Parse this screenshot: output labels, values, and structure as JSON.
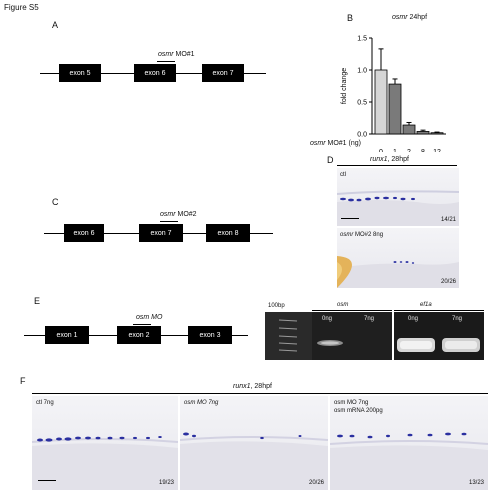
{
  "figure_title": "Figure S5",
  "panels": {
    "A": {
      "letter": "A",
      "mo_gene": "osmr",
      "mo_suffix": " MO#1",
      "exons": [
        "exon 5",
        "exon 6",
        "exon 7"
      ]
    },
    "B": {
      "letter": "B",
      "title_gene": "osmr",
      "title_suffix": " 24hpf",
      "ylabel": "fold change",
      "xaxis_gene": "osmr",
      "xaxis_suffix": " MO#1 (ng)"
    },
    "C": {
      "letter": "C",
      "mo_gene": "osmr",
      "mo_suffix": " MO#2",
      "exons": [
        "exon 6",
        "exon 7",
        "exon 8"
      ]
    },
    "D": {
      "letter": "D",
      "title_gene": "runx1",
      "title_suffix": ", 28hpf",
      "top_label": "ctl",
      "top_count": "14/21",
      "bottom_label_gene": "osmr",
      "bottom_label_suffix": " MO#2 8ng",
      "bottom_count": "20/26"
    },
    "E": {
      "letter": "E",
      "mo_label": "osm MO",
      "exons": [
        "exon 1",
        "exon 2",
        "exon 3"
      ],
      "ladder_label": "100bp",
      "gel_left_title": "osm",
      "gel_right_title": "ef1a",
      "lanes": [
        "0ng",
        "7ng",
        "0ng",
        "7ng"
      ]
    },
    "F": {
      "letter": "F",
      "title_gene": "runx1",
      "title_suffix": ", 28hpf",
      "images": [
        {
          "label": "ctl 7ng",
          "label2": "",
          "count": "19/23"
        },
        {
          "label": "osm MO 7ng",
          "label2": "",
          "count": "20/26"
        },
        {
          "label": "osm MO 7ng",
          "label2": "osm mRNA 200pg",
          "count": "13/23"
        }
      ]
    }
  },
  "chart_data": {
    "type": "bar",
    "title": "osmr 24hpf",
    "xlabel": "osmr MO#1 (ng)",
    "ylabel": "fold change",
    "categories": [
      "0",
      "1",
      "2",
      "8",
      "12"
    ],
    "values": [
      1.0,
      0.78,
      0.14,
      0.04,
      0.02
    ],
    "errors": [
      0.33,
      0.08,
      0.04,
      0.02,
      0.01
    ],
    "ylim": [
      0,
      1.5
    ],
    "yticks": [
      "0.0",
      "0.5",
      "1.0",
      "1.5"
    ],
    "bar_colors": [
      "#d6d6d6",
      "#7a7a7a",
      "#7a7a7a",
      "#7a7a7a",
      "#7a7a7a"
    ]
  }
}
